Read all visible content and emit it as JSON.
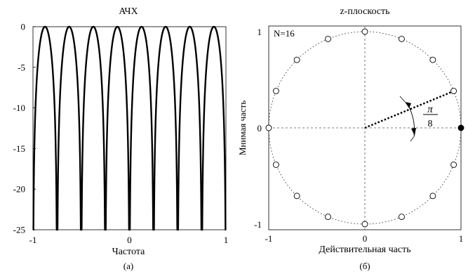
{
  "charts": {
    "left": {
      "title": "АЧХ",
      "xlabel": "Частота",
      "caption": "(а)"
    },
    "right": {
      "title": "z-плоскость",
      "xlabel": "Действительная часть",
      "ylabel": "Мнимая часть",
      "caption": "(б)",
      "n_label": "N=16",
      "angle_numerator": "π",
      "angle_denominator": "8"
    }
  },
  "chart_data": [
    {
      "type": "line",
      "title": "АЧХ",
      "xlabel": "Частота",
      "ylabel": "",
      "xlim": [
        -1,
        1
      ],
      "ylim": [
        -25,
        0
      ],
      "x_ticks": [
        -1,
        0,
        1
      ],
      "x_tick_labels": [
        "-1",
        "0",
        "1"
      ],
      "y_ticks": [
        0,
        -5,
        -10,
        -15,
        -20,
        -25
      ],
      "y_tick_labels": [
        "0",
        "-5",
        "-10",
        "-15",
        "-20",
        "-25"
      ],
      "comb_N": 16,
      "notch_x": [
        -1,
        -0.75,
        -0.5,
        -0.25,
        0,
        0.25,
        0.5,
        0.75,
        1
      ],
      "peak_x": [
        -0.875,
        -0.625,
        -0.375,
        -0.125,
        0.125,
        0.375,
        0.625,
        0.875
      ],
      "peak_y": 0,
      "series": [
        {
          "color": "#000000"
        }
      ]
    },
    {
      "type": "scatter",
      "title": "z-плоскость",
      "xlabel": "Действительная часть",
      "ylabel": "Мнимая часть",
      "xlim": [
        -1,
        1
      ],
      "ylim": [
        -1,
        1
      ],
      "x_ticks": [
        -1,
        0,
        1
      ],
      "x_tick_labels": [
        "-1",
        "0",
        "1"
      ],
      "y_ticks": [
        1,
        0,
        -1
      ],
      "y_tick_labels": [
        "1",
        "0",
        "-1"
      ],
      "unit_circle": true,
      "annotation": "N=16",
      "angle_annotation": "π/8",
      "angle_rad": 0.3927,
      "zeros_count": 16,
      "zeros": [
        {
          "re": 1.0,
          "im": 0.0,
          "filled": true
        },
        {
          "re": 0.924,
          "im": 0.383,
          "filled": false
        },
        {
          "re": 0.707,
          "im": 0.707,
          "filled": false
        },
        {
          "re": 0.383,
          "im": 0.924,
          "filled": false
        },
        {
          "re": 0.0,
          "im": 1.0,
          "filled": false
        },
        {
          "re": -0.383,
          "im": 0.924,
          "filled": false
        },
        {
          "re": -0.707,
          "im": 0.707,
          "filled": false
        },
        {
          "re": -0.924,
          "im": 0.383,
          "filled": false
        },
        {
          "re": -1.0,
          "im": 0.0,
          "filled": false
        },
        {
          "re": -0.924,
          "im": -0.383,
          "filled": false
        },
        {
          "re": -0.707,
          "im": -0.707,
          "filled": false
        },
        {
          "re": -0.383,
          "im": -0.924,
          "filled": false
        },
        {
          "re": 0.0,
          "im": -1.0,
          "filled": false
        },
        {
          "re": 0.383,
          "im": -0.924,
          "filled": false
        },
        {
          "re": 0.707,
          "im": -0.707,
          "filled": false
        },
        {
          "re": 0.924,
          "im": -0.383,
          "filled": false
        }
      ]
    }
  ]
}
